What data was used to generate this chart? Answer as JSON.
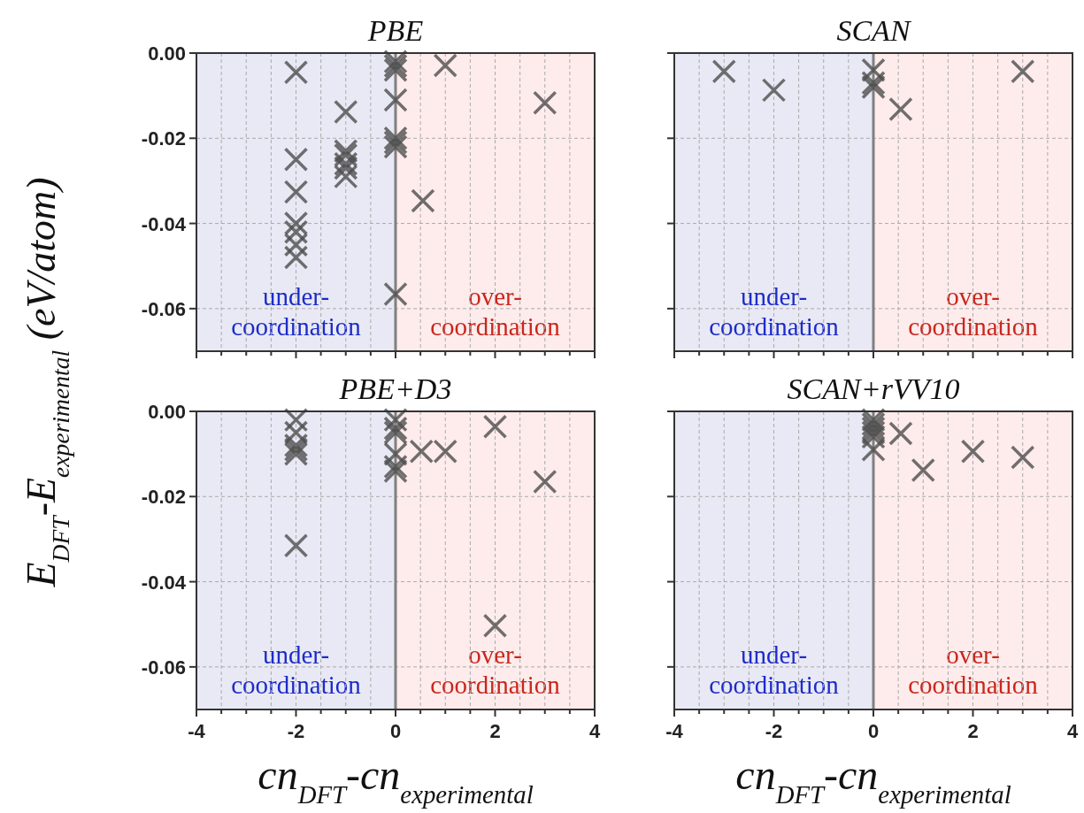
{
  "chart_data": [
    {
      "type": "scatter",
      "title": "PBE",
      "ylabel": "E$_{DFT}$-E$_{experimental}$ (eV/atom)",
      "xlim": [
        -4,
        4
      ],
      "ylim": [
        -0.07,
        0
      ],
      "xticks": [
        -4,
        {
          "value": -3.5,
          "label": null
        },
        {
          "value": -3,
          "label": null
        },
        {
          "value": -2.5,
          "label": null
        },
        -2,
        {
          "value": -1.5,
          "label": null
        },
        {
          "value": -1,
          "label": null
        },
        {
          "value": -0.5,
          "label": null
        },
        0,
        {
          "value": 0.5,
          "label": null
        },
        {
          "value": 1,
          "label": null
        },
        {
          "value": 1.5,
          "label": null
        },
        2,
        {
          "value": 2.5,
          "label": null
        },
        {
          "value": 3,
          "label": null
        },
        {
          "value": 3.5,
          "label": null
        },
        4
      ],
      "yticks": [
        {
          "value": 0,
          "label": "0.00"
        },
        {
          "value": -0.02,
          "label": "-0.02"
        },
        {
          "value": -0.04,
          "label": "-0.04"
        },
        {
          "value": -0.06,
          "label": "-0.06"
        }
      ],
      "grid": true,
      "marker": "cross",
      "tick_labels": "y",
      "bands": [
        {
          "axis": "x",
          "from": -4,
          "to": 0,
          "label": "under-\ncoordination",
          "color": "#e8e9f4"
        },
        {
          "axis": "x",
          "from": 0,
          "to": 4,
          "label": "over-\ncoordination",
          "color": "#fdeceb"
        }
      ],
      "ref_lines": [
        {
          "axis": "x",
          "value": 0,
          "color": "#808080"
        }
      ],
      "series": [
        {
          "color": "#4d4d4d",
          "x": [
            -2,
            -1,
            -2,
            -2,
            -2,
            -2,
            -2,
            -2,
            -1,
            -1,
            -1,
            -1,
            -1,
            0,
            0,
            0,
            0,
            0,
            0,
            0,
            0,
            1,
            3,
            0.55
          ],
          "values": [
            -0.0045,
            -0.0138,
            -0.025,
            -0.0326,
            -0.04,
            -0.042,
            -0.045,
            -0.048,
            -0.023,
            -0.024,
            -0.026,
            -0.027,
            -0.029,
            -0.002,
            -0.003,
            -0.004,
            -0.011,
            -0.02,
            -0.021,
            -0.022,
            -0.0566,
            -0.0029,
            -0.0117,
            -0.0347
          ]
        }
      ]
    },
    {
      "type": "scatter",
      "title": "SCAN",
      "xlim": [
        -4,
        4
      ],
      "ylim": [
        -0.07,
        0
      ],
      "xticks": [
        -4,
        {
          "value": -3.5,
          "label": null
        },
        {
          "value": -3,
          "label": null
        },
        {
          "value": -2.5,
          "label": null
        },
        -2,
        {
          "value": -1.5,
          "label": null
        },
        {
          "value": -1,
          "label": null
        },
        {
          "value": -0.5,
          "label": null
        },
        0,
        {
          "value": 0.5,
          "label": null
        },
        {
          "value": 1,
          "label": null
        },
        {
          "value": 1.5,
          "label": null
        },
        2,
        {
          "value": 2.5,
          "label": null
        },
        {
          "value": 3,
          "label": null
        },
        {
          "value": 3.5,
          "label": null
        },
        4
      ],
      "yticks": [
        0,
        -0.02,
        -0.04,
        -0.06
      ],
      "grid": true,
      "marker": "cross",
      "tick_labels": false,
      "bands": [
        {
          "axis": "x",
          "from": -4,
          "to": 0,
          "label": "under-\ncoordination",
          "color": "#e8e9f4"
        },
        {
          "axis": "x",
          "from": 0,
          "to": 4,
          "label": "over-\ncoordination",
          "color": "#fdeceb"
        }
      ],
      "ref_lines": [
        {
          "axis": "x",
          "value": 0,
          "color": "#808080"
        }
      ],
      "series": [
        {
          "color": "#4d4d4d",
          "x": [
            -3,
            -2,
            0,
            0,
            0,
            0.55,
            3
          ],
          "values": [
            -0.0043,
            -0.0087,
            -0.004,
            -0.007,
            -0.008,
            -0.0132,
            -0.0043
          ]
        }
      ]
    },
    {
      "type": "scatter",
      "title": "PBE+D3",
      "xlabel": "cn$_{DFT}$-cn$_{experimental}$",
      "xlim": [
        -4,
        4
      ],
      "ylim": [
        -0.07,
        0
      ],
      "xticks": [
        -4,
        {
          "value": -3.5,
          "label": null
        },
        {
          "value": -3,
          "label": null
        },
        {
          "value": -2.5,
          "label": null
        },
        -2,
        {
          "value": -1.5,
          "label": null
        },
        {
          "value": -1,
          "label": null
        },
        {
          "value": -0.5,
          "label": null
        },
        0,
        {
          "value": 0.5,
          "label": null
        },
        {
          "value": 1,
          "label": null
        },
        {
          "value": 1.5,
          "label": null
        },
        2,
        {
          "value": 2.5,
          "label": null
        },
        {
          "value": 3,
          "label": null
        },
        {
          "value": 3.5,
          "label": null
        },
        4
      ],
      "yticks": [
        {
          "value": 0,
          "label": "0.00"
        },
        {
          "value": -0.02,
          "label": "-0.02"
        },
        {
          "value": -0.04,
          "label": "-0.04"
        },
        {
          "value": -0.06,
          "label": "-0.06"
        }
      ],
      "grid": true,
      "marker": "cross",
      "bands": [
        {
          "axis": "x",
          "from": -4,
          "to": 0,
          "label": "under-\ncoordination",
          "color": "#e8e9f4"
        },
        {
          "axis": "x",
          "from": 0,
          "to": 4,
          "label": "over-\ncoordination",
          "color": "#fdeceb"
        }
      ],
      "ref_lines": [
        {
          "axis": "x",
          "value": 0,
          "color": "#808080"
        }
      ],
      "series": [
        {
          "color": "#4d4d4d",
          "x": [
            -2,
            -2,
            -2,
            -2,
            -2,
            -2,
            0,
            0,
            0,
            0,
            0,
            0,
            0.52,
            1,
            2,
            3,
            2
          ],
          "values": [
            -0.002,
            -0.005,
            -0.008,
            -0.009,
            -0.01,
            -0.0315,
            -0.002,
            -0.004,
            -0.005,
            -0.01,
            -0.013,
            -0.014,
            -0.0094,
            -0.0094,
            -0.0036,
            -0.0165,
            -0.0503
          ]
        }
      ]
    },
    {
      "type": "scatter",
      "title": "SCAN+rVV10",
      "xlabel": "cn$_{DFT}$-cn$_{experimental}$",
      "xlim": [
        -4,
        4
      ],
      "ylim": [
        -0.07,
        0
      ],
      "xticks": [
        -4,
        {
          "value": -3.5,
          "label": null
        },
        {
          "value": -3,
          "label": null
        },
        {
          "value": -2.5,
          "label": null
        },
        -2,
        {
          "value": -1.5,
          "label": null
        },
        {
          "value": -1,
          "label": null
        },
        {
          "value": -0.5,
          "label": null
        },
        0,
        {
          "value": 0.5,
          "label": null
        },
        {
          "value": 1,
          "label": null
        },
        {
          "value": 1.5,
          "label": null
        },
        2,
        {
          "value": 2.5,
          "label": null
        },
        {
          "value": 3,
          "label": null
        },
        {
          "value": 3.5,
          "label": null
        },
        4
      ],
      "yticks": [
        0,
        -0.02,
        -0.04,
        -0.06
      ],
      "grid": true,
      "marker": "cross",
      "tick_labels": "x",
      "bands": [
        {
          "axis": "x",
          "from": -4,
          "to": 0,
          "label": "under-\ncoordination",
          "color": "#e8e9f4"
        },
        {
          "axis": "x",
          "from": 0,
          "to": 4,
          "label": "over-\ncoordination",
          "color": "#fdeceb"
        }
      ],
      "ref_lines": [
        {
          "axis": "x",
          "value": 0,
          "color": "#808080"
        }
      ],
      "series": [
        {
          "color": "#4d4d4d",
          "x": [
            0,
            0,
            0,
            0,
            0,
            0,
            0.55,
            1,
            2,
            3
          ],
          "values": [
            -0.002,
            -0.003,
            -0.004,
            -0.005,
            -0.006,
            -0.009,
            -0.0052,
            -0.0138,
            -0.0094,
            -0.0108
          ]
        }
      ]
    }
  ]
}
